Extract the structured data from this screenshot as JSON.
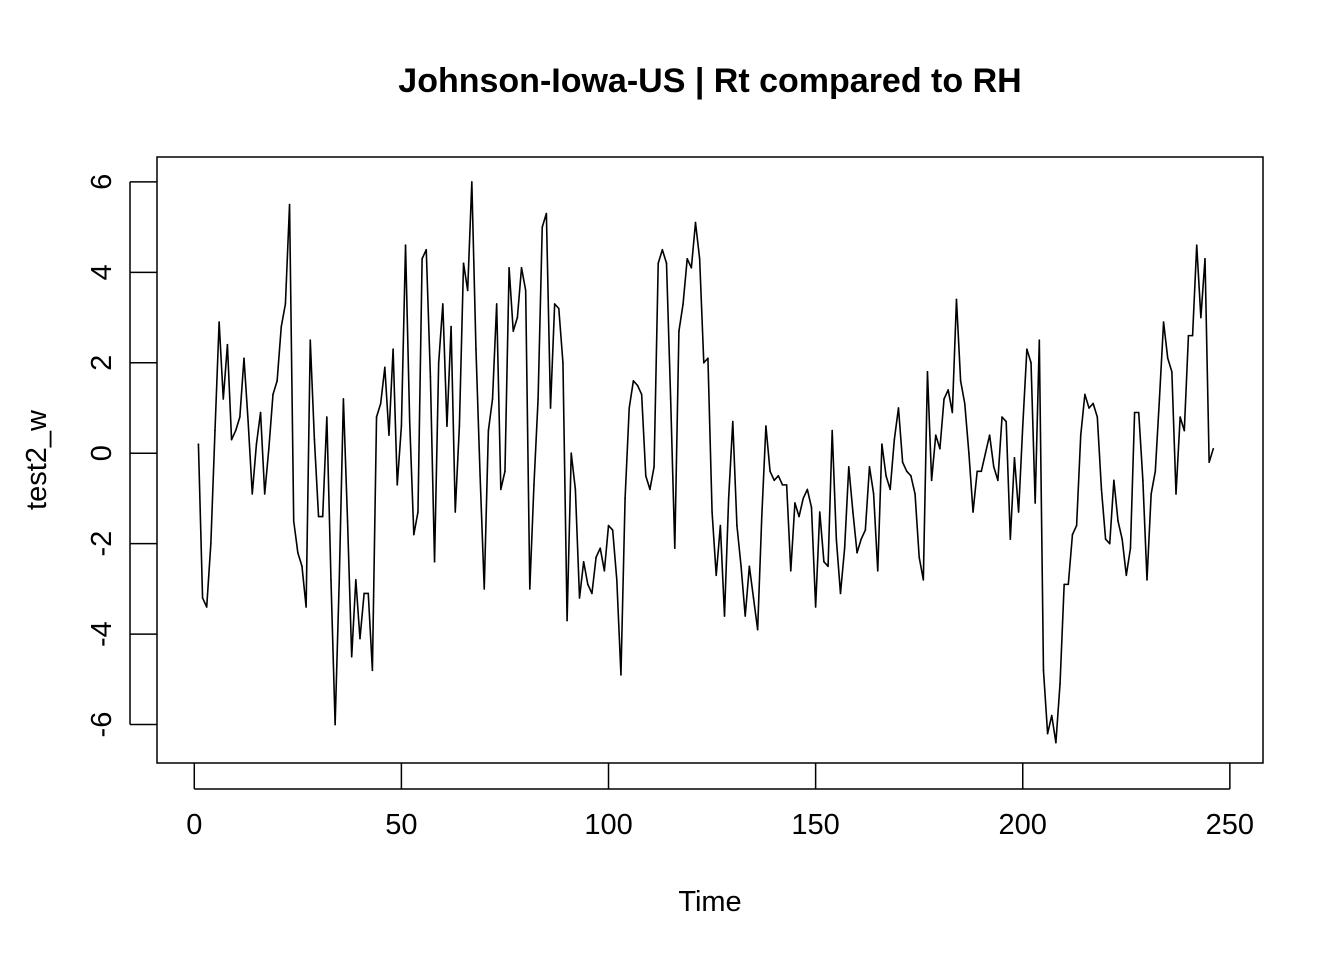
{
  "chart_data": {
    "type": "line",
    "title": "Johnson-Iowa-US | Rt compared to RH",
    "xlabel": "Time",
    "ylabel": "test2_w",
    "xlim": [
      -9,
      258
    ],
    "ylim": [
      -6.85,
      6.55
    ],
    "x_ticks": [
      0,
      50,
      100,
      150,
      200,
      250
    ],
    "x_tick_labels": [
      "0",
      "50",
      "100",
      "150",
      "200",
      "250"
    ],
    "y_ticks": [
      -6,
      -4,
      -2,
      0,
      2,
      4,
      6
    ],
    "y_tick_labels": [
      "-6",
      "-4",
      "-2",
      "0",
      "2",
      "4",
      "6"
    ],
    "grid": false,
    "legend": "none",
    "line_color": "#000000",
    "series": [
      {
        "x_start": 1,
        "x_step": 1,
        "values": [
          0.2,
          -3.2,
          -3.4,
          -2.0,
          0.5,
          2.9,
          1.2,
          2.4,
          0.3,
          0.5,
          0.8,
          2.1,
          0.7,
          -0.9,
          0.2,
          0.9,
          -0.9,
          0.1,
          1.3,
          1.6,
          2.8,
          3.3,
          5.5,
          -1.5,
          -2.2,
          -2.5,
          -3.4,
          2.5,
          0.3,
          -1.4,
          -1.4,
          0.8,
          -2.8,
          -6.0,
          -2.8,
          1.2,
          -1.5,
          -4.5,
          -2.8,
          -4.1,
          -3.1,
          -3.1,
          -4.8,
          0.8,
          1.1,
          1.9,
          0.4,
          2.3,
          -0.7,
          0.6,
          4.6,
          0.7,
          -1.8,
          -1.3,
          4.3,
          4.5,
          1.7,
          -2.4,
          2.0,
          3.3,
          0.6,
          2.8,
          -1.3,
          0.6,
          4.2,
          3.6,
          6.0,
          2.3,
          -0.5,
          -3.0,
          0.5,
          1.2,
          3.3,
          -0.8,
          -0.4,
          4.1,
          2.7,
          3.0,
          4.1,
          3.6,
          -3.0,
          -0.7,
          1.2,
          5.0,
          5.3,
          1.0,
          3.3,
          3.2,
          2.0,
          -3.7,
          0.0,
          -0.8,
          -3.2,
          -2.4,
          -2.9,
          -3.1,
          -2.3,
          -2.1,
          -2.6,
          -1.6,
          -1.7,
          -2.8,
          -4.9,
          -1.0,
          1.0,
          1.6,
          1.5,
          1.3,
          -0.5,
          -0.8,
          -0.3,
          4.2,
          4.5,
          4.2,
          1.2,
          -2.1,
          2.7,
          3.3,
          4.3,
          4.1,
          5.1,
          4.3,
          2.0,
          2.1,
          -1.3,
          -2.7,
          -1.6,
          -3.6,
          -1.0,
          0.7,
          -1.6,
          -2.5,
          -3.6,
          -2.5,
          -3.2,
          -3.9,
          -1.4,
          0.6,
          -0.4,
          -0.6,
          -0.5,
          -0.7,
          -0.7,
          -2.6,
          -1.1,
          -1.4,
          -1.0,
          -0.8,
          -1.2,
          -3.4,
          -1.3,
          -2.4,
          -2.5,
          0.5,
          -1.9,
          -3.1,
          -2.1,
          -0.3,
          -1.3,
          -2.2,
          -1.9,
          -1.7,
          -0.3,
          -0.9,
          -2.6,
          0.2,
          -0.5,
          -0.8,
          0.3,
          1.0,
          -0.2,
          -0.4,
          -0.5,
          -0.9,
          -2.3,
          -2.8,
          1.8,
          -0.6,
          0.4,
          0.1,
          1.2,
          1.4,
          0.9,
          3.4,
          1.6,
          1.1,
          0.0,
          -1.3,
          -0.4,
          -0.4,
          0.0,
          0.4,
          -0.3,
          -0.6,
          0.8,
          0.7,
          -1.9,
          -0.1,
          -1.3,
          0.6,
          2.3,
          2.0,
          -1.1,
          2.5,
          -4.8,
          -6.2,
          -5.8,
          -6.4,
          -5.1,
          -2.9,
          -2.9,
          -1.8,
          -1.6,
          0.4,
          1.3,
          1.0,
          1.1,
          0.8,
          -0.8,
          -1.9,
          -2.0,
          -0.6,
          -1.5,
          -1.9,
          -2.7,
          -2.1,
          0.9,
          0.9,
          -0.6,
          -2.8,
          -0.9,
          -0.4,
          1.2,
          2.9,
          2.1,
          1.8,
          -0.9,
          0.8,
          0.5,
          2.6,
          2.6,
          4.6,
          3.0,
          4.3,
          -0.2,
          0.1
        ]
      }
    ]
  }
}
